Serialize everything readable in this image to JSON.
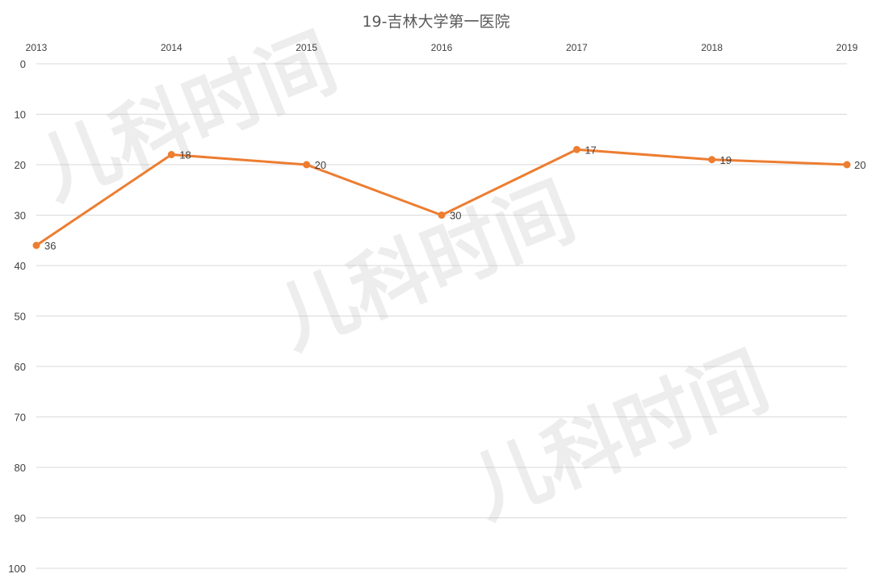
{
  "chart_data": {
    "type": "line",
    "title": "19-吉林大学第一医院",
    "x": [
      "2013",
      "2014",
      "2015",
      "2016",
      "2017",
      "2018",
      "2019"
    ],
    "series": [
      {
        "values": [
          36,
          18,
          20,
          30,
          17,
          19,
          20
        ]
      }
    ],
    "xlabel": "",
    "ylabel": "",
    "ylim": [
      0,
      100
    ],
    "y_reversed": true,
    "y_ticks": [
      0,
      10,
      20,
      30,
      40,
      50,
      60,
      70,
      80,
      90,
      100
    ],
    "x_axis_position": "top",
    "grid": true,
    "data_labels": true,
    "colors": {
      "line": "#ED7D31",
      "grid": "#d9d9d9",
      "text": "#404040"
    }
  },
  "watermark": {
    "text": "儿科时间"
  }
}
